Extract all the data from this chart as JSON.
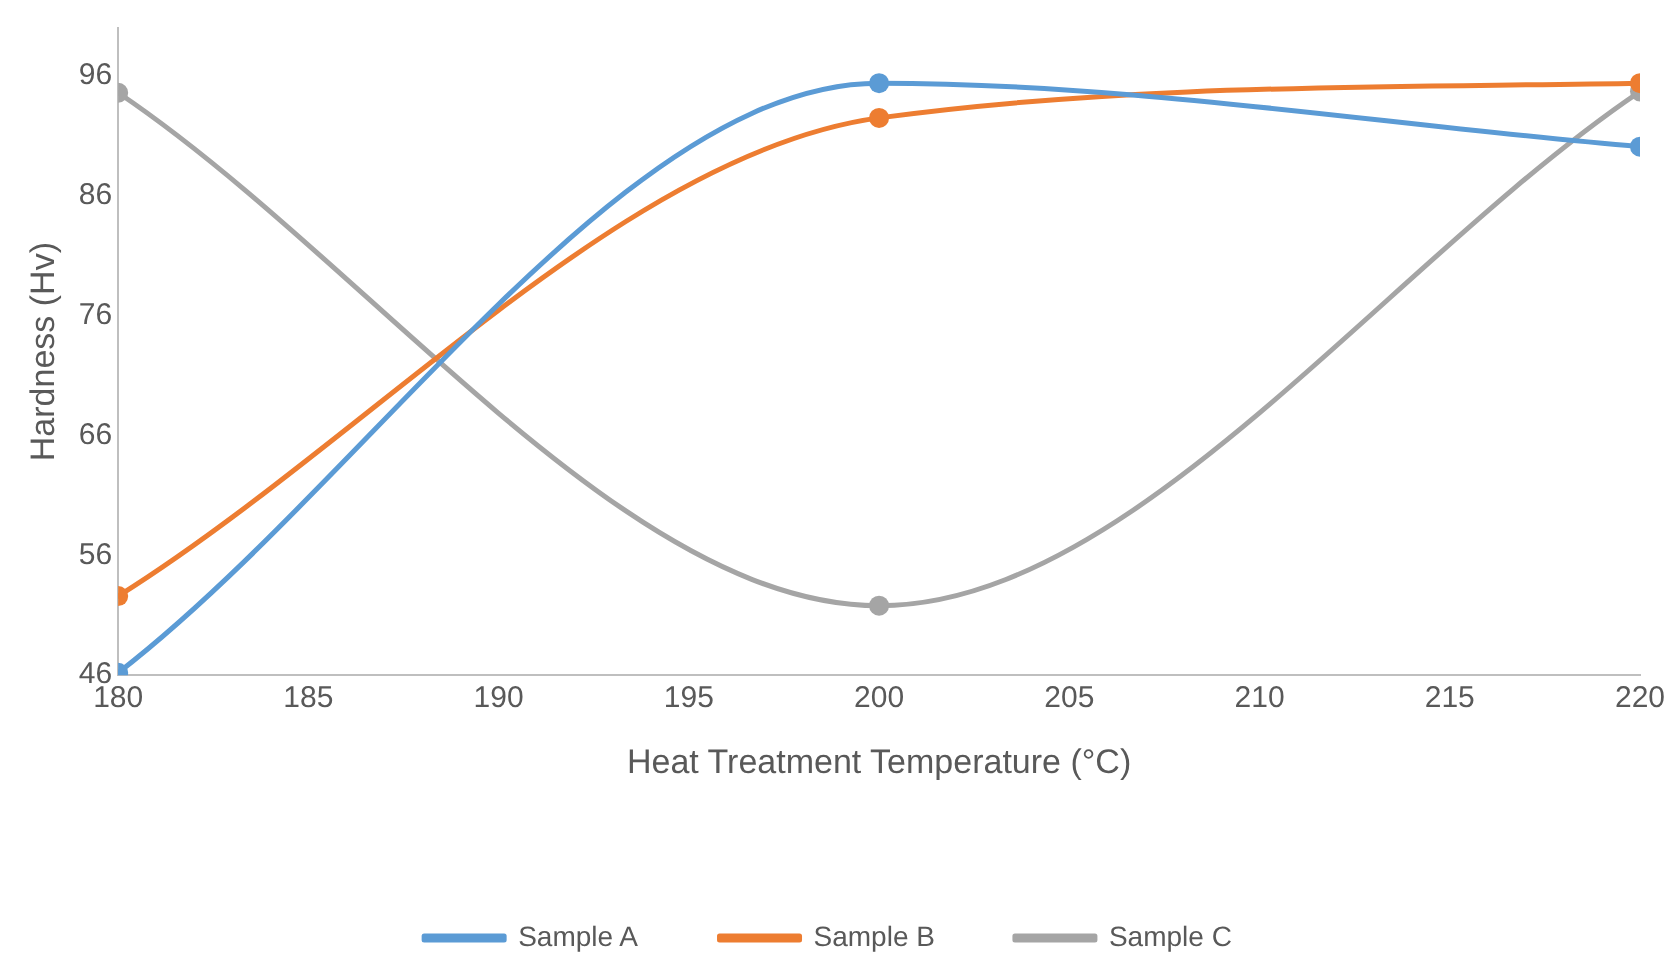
{
  "chart_data": {
    "type": "line",
    "xlabel": "Heat Treatment Temperature (°C)",
    "ylabel": "Hardness (Hv)",
    "x": [
      180,
      200,
      220
    ],
    "series": [
      {
        "name": "Sample A",
        "color": "#5b9bd5",
        "values": [
          46.2,
          95.4,
          90.1
        ]
      },
      {
        "name": "Sample B",
        "color": "#ed7d31",
        "values": [
          52.6,
          92.5,
          95.4
        ]
      },
      {
        "name": "Sample C",
        "color": "#a5a5a5",
        "values": [
          94.6,
          51.8,
          94.7
        ]
      }
    ],
    "xlim": [
      180,
      220
    ],
    "xticks": [
      180,
      185,
      190,
      195,
      200,
      205,
      210,
      215,
      220
    ],
    "ylim": [
      46,
      100
    ],
    "yticks": [
      46,
      56,
      66,
      76,
      86,
      96
    ],
    "grid": false,
    "legend": "bottom",
    "marker": "circle",
    "line_style": "solid"
  }
}
